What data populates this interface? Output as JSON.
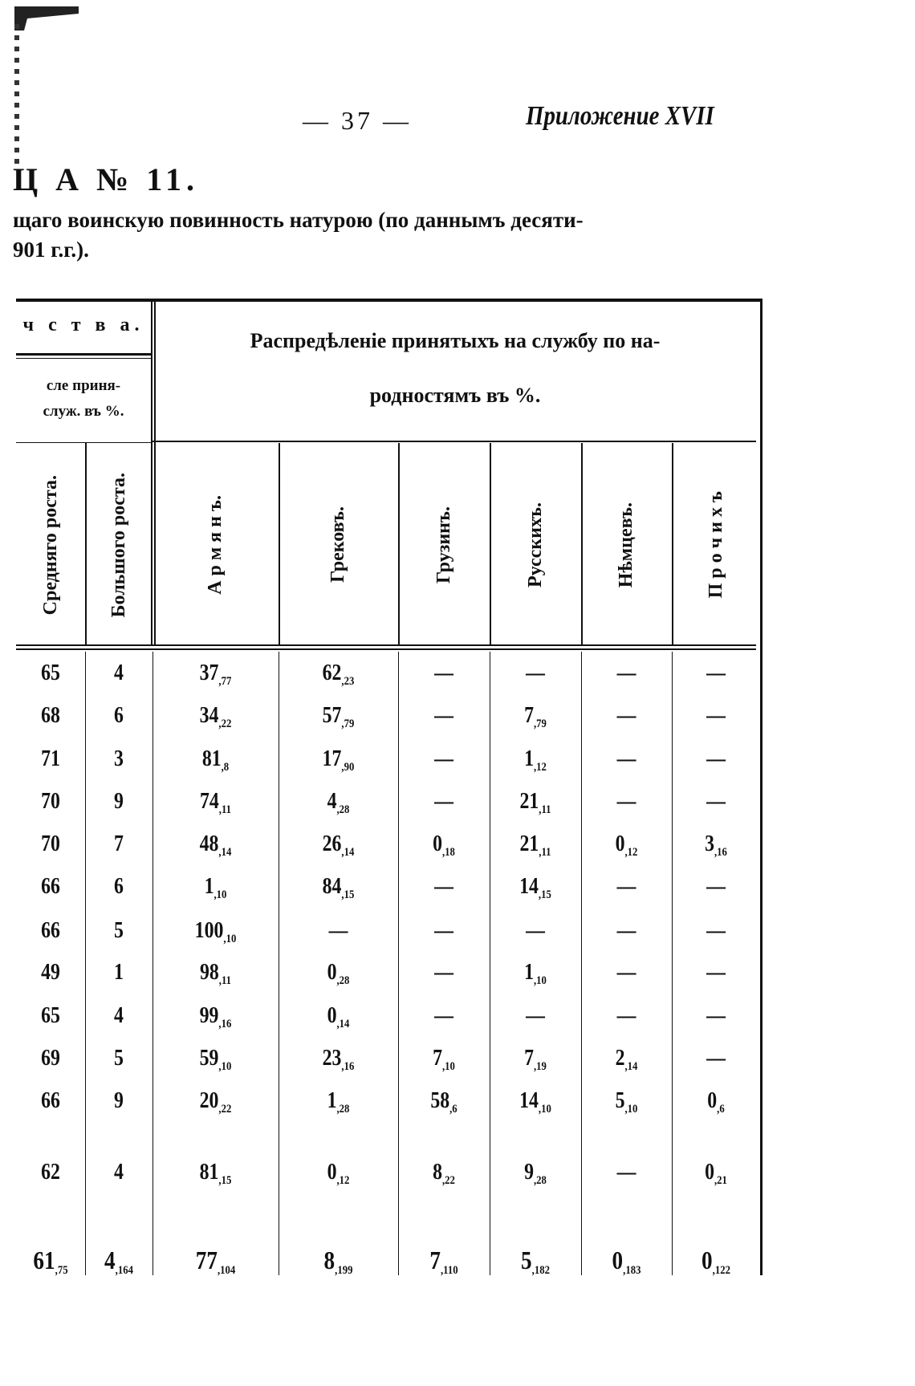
{
  "page": {
    "page_number": "— 37 —",
    "appendix": "Приложение XVII",
    "table_title": "Ц А  № 11.",
    "subtitle_line1": "щаго воинскую повинность натурою (по даннымъ десяти-",
    "subtitle_line2": "901 г.г.)."
  },
  "header": {
    "left_group": "ч с т в а.",
    "left_sub_line1": "сле приня-",
    "left_sub_line2": "служ. въ %.",
    "right_group_line1": "Распредѣленіе принятыхъ на службу по на-",
    "right_group_line2": "родностямъ въ %.",
    "columns": [
      "Средняго роста.",
      "Большого роста.",
      "А р м я н ъ.",
      "Грековъ.",
      "Грузинъ.",
      "Русскихъ.",
      "Нѣмцевъ.",
      "П р о ч и х ъ"
    ]
  },
  "rows": [
    [
      [
        "65",
        ""
      ],
      [
        "4",
        ""
      ],
      [
        "37",
        "77"
      ],
      [
        "62",
        "23"
      ],
      [
        "—",
        ""
      ],
      [
        "—",
        ""
      ],
      [
        "—",
        ""
      ],
      [
        "—",
        ""
      ]
    ],
    [
      [
        "68",
        ""
      ],
      [
        "6",
        ""
      ],
      [
        "34",
        "22"
      ],
      [
        "57",
        "79"
      ],
      [
        "—",
        ""
      ],
      [
        "7",
        "79"
      ],
      [
        "—",
        ""
      ],
      [
        "—",
        ""
      ]
    ],
    [
      [
        "71",
        ""
      ],
      [
        "3",
        ""
      ],
      [
        "81",
        "8"
      ],
      [
        "17",
        "90"
      ],
      [
        "—",
        ""
      ],
      [
        "1",
        "12"
      ],
      [
        "—",
        ""
      ],
      [
        "—",
        ""
      ]
    ],
    [
      [
        "70",
        ""
      ],
      [
        "9",
        ""
      ],
      [
        "74",
        "11"
      ],
      [
        "4",
        "28"
      ],
      [
        "—",
        ""
      ],
      [
        "21",
        "11"
      ],
      [
        "—",
        ""
      ],
      [
        "—",
        ""
      ]
    ],
    [
      [
        "70",
        ""
      ],
      [
        "7",
        ""
      ],
      [
        "48",
        "14"
      ],
      [
        "26",
        "14"
      ],
      [
        "0",
        "18"
      ],
      [
        "21",
        "11"
      ],
      [
        "0",
        "12"
      ],
      [
        "3",
        "16"
      ]
    ],
    [
      [
        "66",
        ""
      ],
      [
        "6",
        ""
      ],
      [
        "1",
        "10"
      ],
      [
        "84",
        "15"
      ],
      [
        "—",
        ""
      ],
      [
        "14",
        "15"
      ],
      [
        "—",
        ""
      ],
      [
        "—",
        ""
      ]
    ],
    [
      [
        "66",
        ""
      ],
      [
        "5",
        ""
      ],
      [
        "100",
        "10"
      ],
      [
        "—",
        ""
      ],
      [
        "—",
        ""
      ],
      [
        "—",
        ""
      ],
      [
        "—",
        ""
      ],
      [
        "—",
        ""
      ]
    ],
    [
      [
        "49",
        ""
      ],
      [
        "1",
        ""
      ],
      [
        "98",
        "11"
      ],
      [
        "0",
        "28"
      ],
      [
        "—",
        ""
      ],
      [
        "1",
        "10"
      ],
      [
        "—",
        ""
      ],
      [
        "—",
        ""
      ]
    ],
    [
      [
        "65",
        ""
      ],
      [
        "4",
        ""
      ],
      [
        "99",
        "16"
      ],
      [
        "0",
        "14"
      ],
      [
        "—",
        ""
      ],
      [
        "—",
        ""
      ],
      [
        "—",
        ""
      ],
      [
        "—",
        ""
      ]
    ],
    [
      [
        "69",
        ""
      ],
      [
        "5",
        ""
      ],
      [
        "59",
        "10"
      ],
      [
        "23",
        "16"
      ],
      [
        "7",
        "10"
      ],
      [
        "7",
        "19"
      ],
      [
        "2",
        "14"
      ],
      [
        "—",
        ""
      ]
    ],
    [
      [
        "66",
        ""
      ],
      [
        "9",
        ""
      ],
      [
        "20",
        "22"
      ],
      [
        "1",
        "28"
      ],
      [
        "58",
        "6"
      ],
      [
        "14",
        "10"
      ],
      [
        "5",
        "10"
      ],
      [
        "0",
        "6"
      ]
    ],
    [
      [
        "62",
        ""
      ],
      [
        "4",
        ""
      ],
      [
        "81",
        "15"
      ],
      [
        "0",
        "12"
      ],
      [
        "8",
        "22"
      ],
      [
        "9",
        "28"
      ],
      [
        "—",
        ""
      ],
      [
        "0",
        "21"
      ]
    ]
  ],
  "totals": [
    [
      "61",
      "75"
    ],
    [
      "4",
      "164"
    ],
    [
      "77",
      "104"
    ],
    [
      "8",
      "199"
    ],
    [
      "7",
      "110"
    ],
    [
      "5",
      "182"
    ],
    [
      "0",
      "183"
    ],
    [
      "0",
      "122"
    ]
  ]
}
